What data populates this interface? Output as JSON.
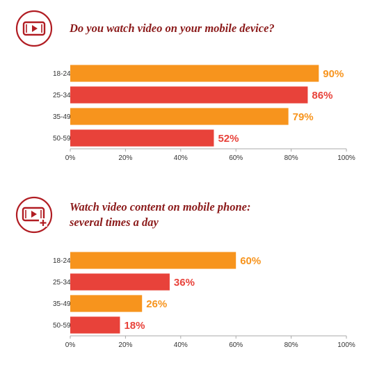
{
  "colors": {
    "orange": "#f7941d",
    "red": "#e8423a",
    "title": "#8b1a1a",
    "icon": "#b11d23",
    "axis": "#aaaaaa"
  },
  "panels": [
    {
      "title_lines": [
        "Do you watch video on your mobile device?"
      ],
      "icon": "mobile-video-play-icon"
    },
    {
      "title_lines": [
        "Watch video content on mobile phone:",
        "several times a day"
      ],
      "icon": "mobile-video-plus-icon"
    }
  ],
  "chart_data": [
    {
      "type": "bar",
      "orientation": "horizontal",
      "title": "Do you watch video on your mobile device?",
      "categories": [
        "18-24",
        "25-34",
        "35-49",
        "50-59"
      ],
      "values": [
        90,
        86,
        79,
        52
      ],
      "value_labels": [
        "90%",
        "86%",
        "79%",
        "52%"
      ],
      "bar_colors": [
        "#f7941d",
        "#e8423a",
        "#f7941d",
        "#e8423a"
      ],
      "xlim": [
        0,
        100
      ],
      "xticks": [
        "0%",
        "20%",
        "40%",
        "60%",
        "80%",
        "100%"
      ]
    },
    {
      "type": "bar",
      "orientation": "horizontal",
      "title": "Watch video content on mobile phone: several times a day",
      "categories": [
        "18-24",
        "25-34",
        "35-49",
        "50-59"
      ],
      "values": [
        60,
        36,
        26,
        18
      ],
      "value_labels": [
        "60%",
        "36%",
        "26%",
        "18%"
      ],
      "bar_colors": [
        "#f7941d",
        "#e8423a",
        "#f7941d",
        "#e8423a"
      ],
      "xlim": [
        0,
        100
      ],
      "xticks": [
        "0%",
        "20%",
        "40%",
        "60%",
        "80%",
        "100%"
      ]
    }
  ]
}
